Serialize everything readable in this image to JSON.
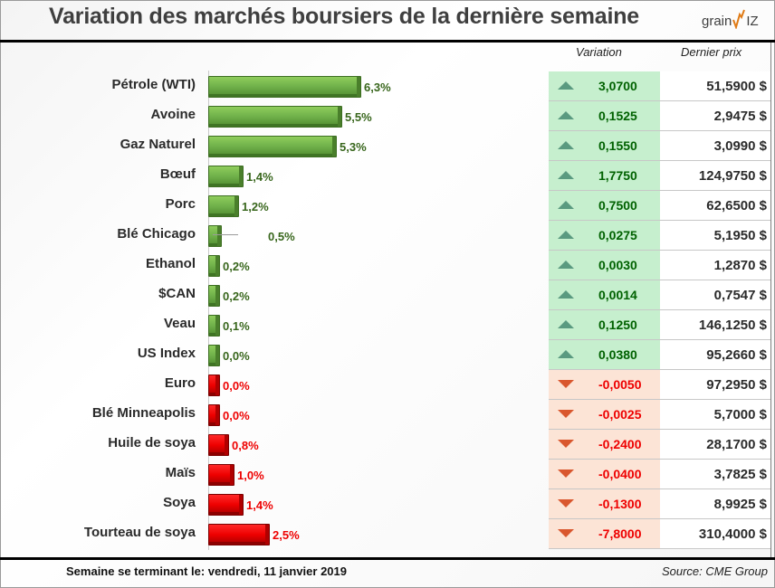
{
  "header": {
    "title": "Variation des marchés boursiers de la dernière semaine",
    "logo_text_left": "Grain",
    "logo_text_right": "IZ"
  },
  "table_headers": {
    "variation": "Variation",
    "price": "Dernier prix"
  },
  "footer": {
    "week_label": "Semaine se terminant le:  vendredi, 11 janvier 2019",
    "source": "Source: CME Group"
  },
  "colors": {
    "up_bar": "#70AD47",
    "down_bar": "#FF0000",
    "up_cell": "#C6EFCE",
    "down_cell": "#FCE4D6",
    "up_text": "#006100",
    "down_text": "#EE0000"
  },
  "chart_data": {
    "type": "bar",
    "orientation": "horizontal",
    "title": "Variation des marchés boursiers de la dernière semaine",
    "xlabel": "",
    "ylabel": "",
    "grid": false,
    "legend": "none",
    "xlim": [
      0,
      6.3
    ],
    "categories": [
      "Pétrole (WTI)",
      "Avoine",
      "Gaz Naturel",
      "Bœuf",
      "Porc",
      "Blé Chicago",
      "Ethanol",
      "$CAN",
      "Veau",
      "US Index",
      "Euro",
      "Blé Minneapolis",
      "Huile de soya",
      "Maïs",
      "Soya",
      "Tourteau de soya"
    ],
    "values": [
      6.3,
      5.5,
      5.3,
      1.4,
      1.2,
      0.5,
      0.2,
      0.2,
      0.1,
      0.0,
      0.0,
      0.0,
      0.8,
      1.0,
      1.4,
      2.5
    ],
    "direction": [
      "up",
      "up",
      "up",
      "up",
      "up",
      "up",
      "up",
      "up",
      "up",
      "up",
      "down",
      "down",
      "down",
      "down",
      "down",
      "down"
    ],
    "data_labels": [
      "6,3%",
      "5,5%",
      "5,3%",
      "1,4%",
      "1,2%",
      "0,5%",
      "0,2%",
      "0,2%",
      "0,1%",
      "0,0%",
      "0,0%",
      "0,0%",
      "0,8%",
      "1,0%",
      "1,4%",
      "2,5%"
    ]
  },
  "rows": [
    {
      "name": "Pétrole (WTI)",
      "pct": "6,3%",
      "dir": "up",
      "variation": "3,0700",
      "price": "51,5900 $"
    },
    {
      "name": "Avoine",
      "pct": "5,5%",
      "dir": "up",
      "variation": "0,1525",
      "price": "2,9475 $"
    },
    {
      "name": "Gaz Naturel",
      "pct": "5,3%",
      "dir": "up",
      "variation": "0,1550",
      "price": "3,0990 $"
    },
    {
      "name": "Bœuf",
      "pct": "1,4%",
      "dir": "up",
      "variation": "1,7750",
      "price": "124,9750 $"
    },
    {
      "name": "Porc",
      "pct": "1,2%",
      "dir": "up",
      "variation": "0,7500",
      "price": "62,6500 $"
    },
    {
      "name": "Blé Chicago",
      "pct": "0,5%",
      "dir": "up",
      "variation": "0,0275",
      "price": "5,1950 $"
    },
    {
      "name": "Ethanol",
      "pct": "0,2%",
      "dir": "up",
      "variation": "0,0030",
      "price": "1,2870 $"
    },
    {
      "name": "$CAN",
      "pct": "0,2%",
      "dir": "up",
      "variation": "0,0014",
      "price": "0,7547 $"
    },
    {
      "name": "Veau",
      "pct": "0,1%",
      "dir": "up",
      "variation": "0,1250",
      "price": "146,1250 $"
    },
    {
      "name": "US Index",
      "pct": "0,0%",
      "dir": "up",
      "variation": "0,0380",
      "price": "95,2660 $"
    },
    {
      "name": "Euro",
      "pct": "0,0%",
      "dir": "down",
      "variation": "-0,0050",
      "price": "97,2950 $"
    },
    {
      "name": "Blé Minneapolis",
      "pct": "0,0%",
      "dir": "down",
      "variation": "-0,0025",
      "price": "5,7000 $"
    },
    {
      "name": "Huile de soya",
      "pct": "0,8%",
      "dir": "down",
      "variation": "-0,2400",
      "price": "28,1700 $"
    },
    {
      "name": "Maïs",
      "pct": "1,0%",
      "dir": "down",
      "variation": "-0,0400",
      "price": "3,7825 $"
    },
    {
      "name": "Soya",
      "pct": "1,4%",
      "dir": "down",
      "variation": "-0,1300",
      "price": "8,9925 $"
    },
    {
      "name": "Tourteau de soya",
      "pct": "2,5%",
      "dir": "down",
      "variation": "-7,8000",
      "price": "310,4000 $"
    }
  ]
}
